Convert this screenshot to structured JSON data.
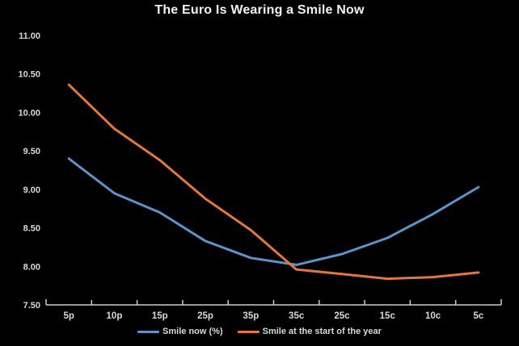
{
  "title": "The Euro Is Wearing a Smile Now",
  "colors": {
    "background": "#000000",
    "title_text": "#f2f2f2",
    "axis": "#cccccc",
    "tick_label_text": "#d9d9d9",
    "legend_text": "#d9d9d9",
    "smile_now": "#5b94c8",
    "smile_start_of_year": "#e2773e"
  },
  "chart_data": {
    "type": "line",
    "title": "The Euro Is Wearing a Smile Now",
    "categories": [
      "5p",
      "10p",
      "15p",
      "25p",
      "35p",
      "35c",
      "25c",
      "15c",
      "10c",
      "5c"
    ],
    "series": [
      {
        "name": "Smile now (%)",
        "color": "#5b94c8",
        "values": [
          9.4,
          8.95,
          8.7,
          8.33,
          8.11,
          8.02,
          8.16,
          8.37,
          8.68,
          9.03
        ]
      },
      {
        "name": "Smile at the start of the year",
        "color": "#e2773e",
        "values": [
          10.36,
          9.79,
          9.38,
          8.88,
          8.47,
          7.96,
          7.9,
          7.84,
          7.86,
          7.92
        ]
      }
    ],
    "xlabel": "",
    "ylabel": "",
    "ylim": [
      7.5,
      11.0
    ],
    "ytick_step": 0.5,
    "ytick_labels": [
      "7.50",
      "8.00",
      "8.50",
      "9.00",
      "9.50",
      "10.00",
      "10.50",
      "11.00"
    ],
    "grid": false,
    "legend_position": "bottom"
  }
}
